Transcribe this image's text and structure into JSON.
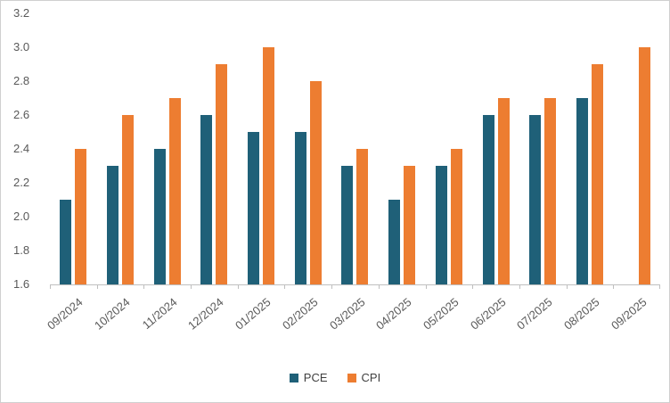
{
  "chart_data": {
    "type": "bar",
    "title": "",
    "xlabel": "",
    "ylabel": "",
    "categories": [
      "09/2024",
      "10/2024",
      "11/2024",
      "12/2024",
      "01/2025",
      "02/2025",
      "03/2025",
      "04/2025",
      "05/2025",
      "06/2025",
      "07/2025",
      "08/2025",
      "09/2025"
    ],
    "series": [
      {
        "name": "PCE",
        "color": "#1f6078",
        "values": [
          2.1,
          2.3,
          2.4,
          2.6,
          2.5,
          2.5,
          2.3,
          2.1,
          2.3,
          2.6,
          2.6,
          2.7,
          null
        ]
      },
      {
        "name": "CPI",
        "color": "#ed7d31",
        "values": [
          2.4,
          2.6,
          2.7,
          2.9,
          3.0,
          2.8,
          2.4,
          2.3,
          2.4,
          2.7,
          2.7,
          2.9,
          3.0
        ]
      }
    ],
    "ylim": [
      1.6,
      3.2
    ],
    "ytick_step": 0.2,
    "grid": false,
    "legend_position": "bottom",
    "axis_text_color": "#595959"
  }
}
